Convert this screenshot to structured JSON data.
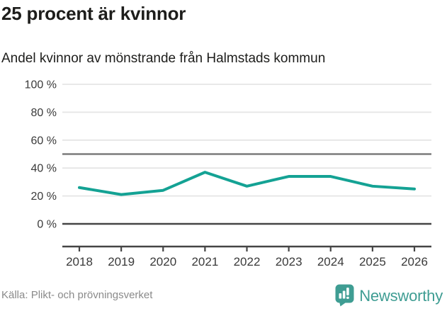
{
  "header": {
    "title": "25 procent är kvinnor",
    "subtitle": "Andel kvinnor av mönstrande från Halmstads kommun"
  },
  "chart_data": {
    "type": "line",
    "title": "25 procent är kvinnor",
    "subtitle": "Andel kvinnor av mönstrande från Halmstads kommun",
    "x": [
      "2018",
      "2019",
      "2020",
      "2021",
      "2022",
      "2023",
      "2024",
      "2025",
      "2026"
    ],
    "series": [
      {
        "name": "Andel kvinnor av mönstrande",
        "values": [
          26,
          21,
          24,
          37,
          27,
          34,
          34,
          27,
          25
        ]
      }
    ],
    "xlabel": "",
    "ylabel": "",
    "ylim": [
      0,
      100
    ],
    "yticks": [
      {
        "value": 0,
        "label": "0 %"
      },
      {
        "value": 20,
        "label": "20 %"
      },
      {
        "value": 40,
        "label": "40 %"
      },
      {
        "value": 60,
        "label": "60 %"
      },
      {
        "value": 80,
        "label": "80 %"
      },
      {
        "value": 100,
        "label": "100 %"
      }
    ],
    "reference_line": 50,
    "grid": true,
    "legend_position": "none"
  },
  "colors": {
    "line": "#14a294",
    "grid": "#e5e5e5",
    "reference_line": "#7c7c7c",
    "zero_line": "#454545",
    "axis": "#454545",
    "tick_label": "#3a3a3a",
    "title_text": "#1d1d1b",
    "source_text": "#8a8a8a",
    "brand": "#3f9d93"
  },
  "footer": {
    "source": "Källa: Plikt- och prövningsverket",
    "brand": "Newsworthy"
  }
}
